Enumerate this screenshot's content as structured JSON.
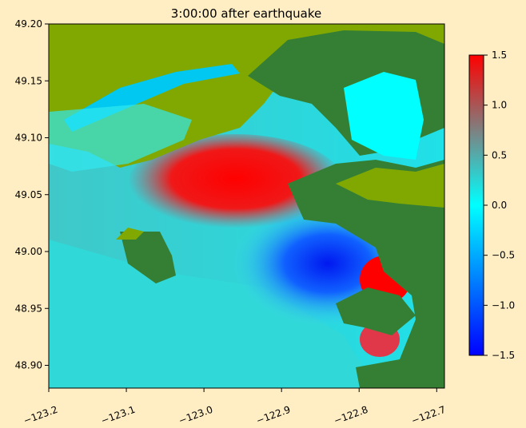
{
  "chart_data": {
    "type": "heatmap",
    "title": "3:00:00 after earthquake",
    "xlabel": "",
    "ylabel": "",
    "xlim": [
      -123.2,
      -122.69
    ],
    "ylim": [
      48.88,
      49.2
    ],
    "xticks": [
      "−123.2",
      "−123.1",
      "−123.0",
      "−122.9",
      "−122.8",
      "−122.7"
    ],
    "xtick_values": [
      -123.2,
      -123.1,
      -123.0,
      -122.9,
      -122.8,
      -122.7
    ],
    "yticks": [
      "49.20",
      "49.15",
      "49.10",
      "49.05",
      "49.00",
      "48.95",
      "48.90"
    ],
    "ytick_values": [
      49.2,
      49.15,
      49.1,
      49.05,
      49.0,
      48.95,
      48.9
    ],
    "colorbar": {
      "range": [
        -1.5,
        1.5
      ],
      "ticks": [
        "1.5",
        "1.0",
        "0.5",
        "0.0",
        "−0.5",
        "−1.0",
        "−1.5"
      ],
      "tick_values": [
        1.5,
        1.0,
        0.5,
        0.0,
        -0.5,
        -1.0,
        -1.5
      ],
      "colors": [
        "#0000FF",
        "#00FFFF",
        "#FF0000"
      ]
    },
    "land_colors": {
      "lowland": "#80A800",
      "upland": "#357F34"
    },
    "grid": false
  }
}
